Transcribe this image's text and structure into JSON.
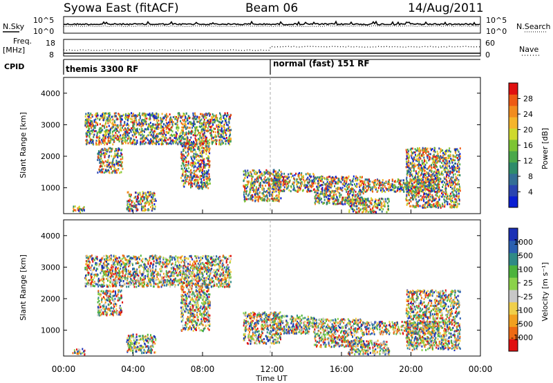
{
  "header": {
    "station": "Syowa East (fitACF)",
    "beam": "Beam 06",
    "date": "14/Aug/2011"
  },
  "labels": {
    "nsky": "N.Sky",
    "nsearch": "N.Search",
    "freq": "Freq.",
    "freq_unit": "[MHz]",
    "nave": "Nave",
    "cpid": "CPID",
    "time_axis": "Time UT",
    "range_axis": "Slant Range [km]",
    "power_bar": "Power [dB]",
    "velocity_bar": "Velocity  [m s⁻¹]",
    "noise_hi": "10^5",
    "noise_lo": "10^0"
  },
  "cpid_segments": [
    "themis 3300 RF",
    "normal (fast) 151 RF"
  ],
  "chart_data": [
    {
      "type": "line",
      "name": "noise",
      "yscale": "log",
      "ylim_labels": [
        "10^0",
        "10^5"
      ],
      "series": [
        {
          "name": "N.Sky"
        },
        {
          "name": "N.Search"
        }
      ]
    },
    {
      "type": "line",
      "name": "frequency",
      "left_ticks": [
        "8",
        "18"
      ],
      "right_ticks": [
        "0",
        "60"
      ],
      "series": [
        {
          "name": "Freq."
        },
        {
          "name": "Nave"
        }
      ]
    },
    {
      "type": "heatmap",
      "name": "power",
      "xlabel": "Time UT",
      "ylabel": "Slant Range [km]",
      "y_ticks": [
        "1000",
        "2000",
        "3000",
        "4000"
      ],
      "ylim": [
        180,
        4500
      ],
      "colorbar": {
        "label": "Power [dB]",
        "ticks": [
          "4",
          "8",
          "12",
          "16",
          "20",
          "24",
          "28"
        ],
        "colors": [
          "#0a1ed2",
          "#2a44b0",
          "#336e95",
          "#2e8c6a",
          "#4aa84a",
          "#7dc433",
          "#cfd92e",
          "#f5b52a",
          "#f28c1e",
          "#ee5a14",
          "#e01010"
        ]
      }
    },
    {
      "type": "heatmap",
      "name": "velocity",
      "xlabel": "Time UT",
      "ylabel": "Slant Range [km]",
      "y_ticks": [
        "1000",
        "2000",
        "3000",
        "4000"
      ],
      "ylim": [
        180,
        4500
      ],
      "colorbar": {
        "label": "Velocity  [m s⁻¹]",
        "ticks": [
          "1000",
          "500",
          "100",
          "25",
          "-25",
          "-100",
          "-500",
          "-1000"
        ],
        "colors": [
          "#1a2fb5",
          "#2a5fb0",
          "#2f8a86",
          "#4cb33c",
          "#8bd24a",
          "#c7c7c7",
          "#f0cf4a",
          "#f2a020",
          "#ee6a14",
          "#e01010"
        ]
      }
    }
  ],
  "time_ticks": [
    "00:00",
    "04:00",
    "08:00",
    "12:00",
    "16:00",
    "20:00",
    "00:00"
  ]
}
